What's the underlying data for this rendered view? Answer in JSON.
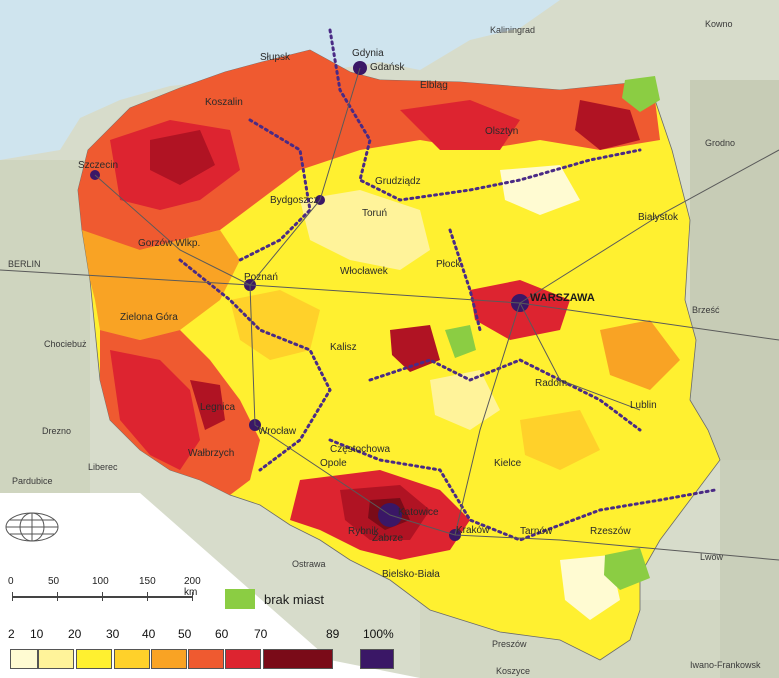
{
  "map": {
    "cities_pl": [
      "Słupsk",
      "Gdynia",
      "Gdańsk",
      "Koszalin",
      "Elbląg",
      "Olsztyn",
      "Szczecin",
      "Grudziądz",
      "Bydgoszcz",
      "Toruń",
      "Białystok",
      "Gorzów Wlkp.",
      "Płock",
      "Włocławek",
      "Poznań",
      "WARSZAWA",
      "Zielona Góra",
      "Kalisz",
      "Radom",
      "Legnica",
      "Lublin",
      "Wrocław",
      "Częstochowa",
      "Wałbrzych",
      "Opole",
      "Kielce",
      "Katowice",
      "Rybnik",
      "Zabrze",
      "Kraków",
      "Tarnów",
      "Rzeszów",
      "Bielsko-Biała"
    ],
    "places_abroad": [
      "Kaliningrad",
      "Kowno",
      "Grodno",
      "BERLIN",
      "Brześć",
      "Chociebuż",
      "Drezno",
      "Liberec",
      "Pardubice",
      "Ostrawa",
      "Lwów",
      "Preszów",
      "Koszyce",
      "Iwano-Frankowsk"
    ]
  },
  "legend": {
    "scale": {
      "ticks": [
        "0",
        "50",
        "100",
        "150"
      ],
      "last": "200 km"
    },
    "missing_label": "brak miast",
    "classes": [
      "2",
      "10",
      "20",
      "30",
      "40",
      "50",
      "60",
      "70",
      "89"
    ],
    "class_colors": [
      "#fffbd2",
      "#fff39a",
      "#fff030",
      "#ffd12a",
      "#f9a324",
      "#ef5a30",
      "#dd2430",
      "#b01323",
      "#7a0b18"
    ],
    "full_label": "100%",
    "full_color": "#3a1766",
    "missing_color": "#8bcd43"
  },
  "colors": {
    "sea": "#cfe4ee",
    "land_outside": "#d7dccb",
    "border_dots": "#4a2a85",
    "roads": "#5a5a5a"
  }
}
